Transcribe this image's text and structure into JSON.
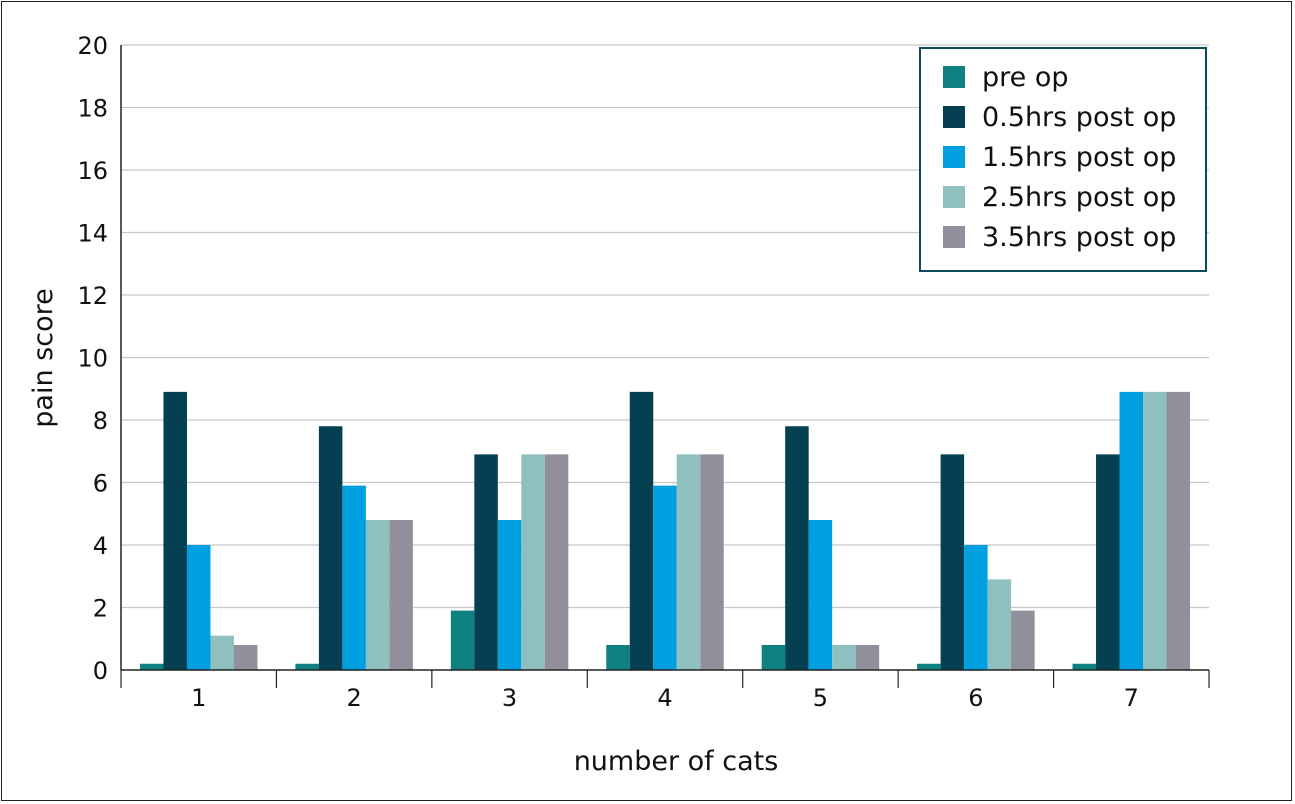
{
  "chart_data": {
    "type": "bar",
    "title": "",
    "xlabel": "number of cats",
    "ylabel": "pain score",
    "ylim": [
      0,
      20
    ],
    "yticks": [
      "0",
      "2",
      "4",
      "6",
      "8",
      "10",
      "12",
      "14",
      "16",
      "18",
      "20"
    ],
    "categories": [
      "1",
      "2",
      "3",
      "4",
      "5",
      "6",
      "7"
    ],
    "series": [
      {
        "name": "pre op",
        "color": "#0e8080",
        "values": [
          0.2,
          0.2,
          1.9,
          0.8,
          0.8,
          0.2,
          0.2
        ]
      },
      {
        "name": "0.5hrs post op",
        "color": "#053f52",
        "values": [
          8.9,
          7.8,
          6.9,
          8.9,
          7.8,
          6.9,
          6.9
        ]
      },
      {
        "name": "1.5hrs post op",
        "color": "#009fe0",
        "values": [
          4.0,
          5.9,
          4.8,
          5.9,
          4.8,
          4.0,
          8.9
        ]
      },
      {
        "name": "2.5hrs post op",
        "color": "#8fbfbf",
        "values": [
          1.1,
          4.8,
          6.9,
          6.9,
          0.8,
          2.9,
          8.9
        ]
      },
      {
        "name": "3.5hrs post op",
        "color": "#908f9a",
        "values": [
          0.8,
          4.8,
          6.9,
          6.9,
          0.8,
          1.9,
          8.9
        ]
      }
    ],
    "grid": true,
    "legend_position": "top-right"
  }
}
